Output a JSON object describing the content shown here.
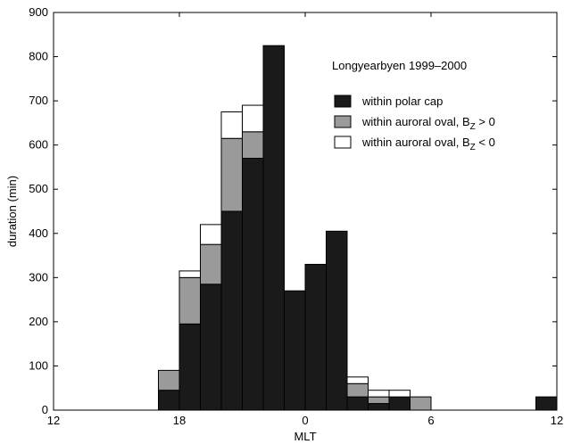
{
  "chart_data": {
    "type": "bar",
    "stacked": true,
    "xlabel": "MLT",
    "ylabel": "duration (min)",
    "annotation": "Longyearbyen 1999–2000",
    "xlim_hours_from_noon": [
      0,
      24
    ],
    "x_ticks": [
      {
        "pos": 0,
        "label": "12"
      },
      {
        "pos": 6,
        "label": "18"
      },
      {
        "pos": 12,
        "label": "0"
      },
      {
        "pos": 18,
        "label": "6"
      },
      {
        "pos": 24,
        "label": "12"
      }
    ],
    "ylim": [
      0,
      900
    ],
    "y_ticks": [
      0,
      100,
      200,
      300,
      400,
      500,
      600,
      700,
      800,
      900
    ],
    "bin_width_hours": 1,
    "bin_starts_hours_from_noon": [
      5,
      6,
      7,
      8,
      9,
      10,
      11,
      12,
      13,
      14,
      15,
      16,
      17,
      23
    ],
    "series": [
      {
        "name": "within polar cap",
        "color": "#1a1a1a",
        "values": [
          45,
          195,
          285,
          450,
          570,
          825,
          270,
          330,
          405,
          30,
          15,
          30,
          0,
          30
        ]
      },
      {
        "name": "within auroral oval, B",
        "name_sub": "Z",
        "name_tail": " > 0",
        "color": "#9a9a9a",
        "values": [
          45,
          105,
          90,
          165,
          60,
          0,
          0,
          0,
          0,
          30,
          15,
          0,
          30,
          0
        ]
      },
      {
        "name": "within auroral oval, B",
        "name_sub": "Z",
        "name_tail": " < 0",
        "color": "#ffffff",
        "values": [
          0,
          15,
          45,
          60,
          60,
          0,
          0,
          0,
          0,
          15,
          15,
          15,
          0,
          0
        ]
      }
    ],
    "legend_position": "top-right",
    "grid": false
  }
}
